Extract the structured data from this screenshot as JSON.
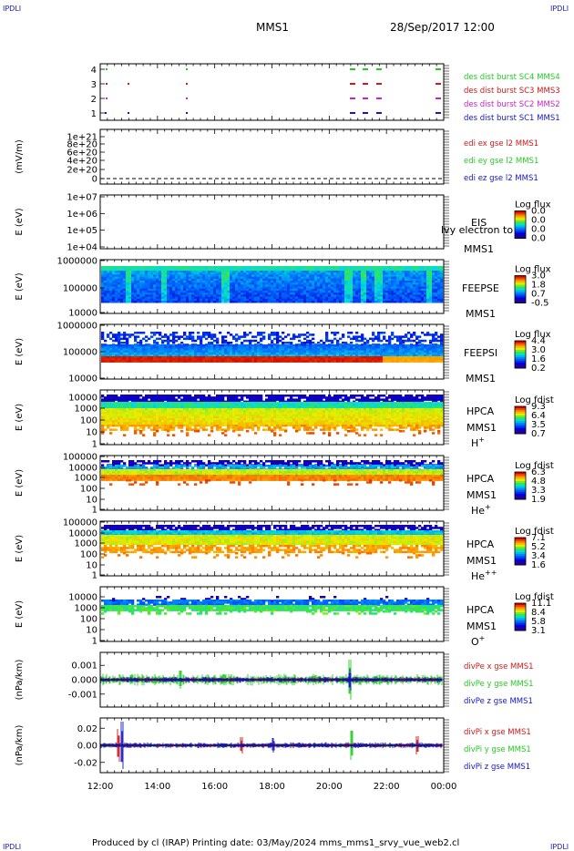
{
  "header": {
    "corner_logo": "IPDLI",
    "spacecraft": "MMS1",
    "datetime": "28/Sep/2017 12:00"
  },
  "footer": {
    "text": "Produced by cl (IRAP)   Printing date: 03/May/2024   mms_mms1_srvy_vue_web2.cl"
  },
  "colors": {
    "red": "#d01818",
    "green": "#22cc22",
    "blue": "#1515c8",
    "magenta": "#cc22cc"
  },
  "chart_data": [
    {
      "type": "scatter",
      "panel": "burst",
      "ylim": [
        0.5,
        4.5
      ],
      "yticks": [
        "1",
        "2",
        "3",
        "4"
      ],
      "series": [
        {
          "name": "des dist burst SC1 MMS1",
          "color": "#1515c8"
        },
        {
          "name": "des dist burst SC2 MMS2",
          "color": "#cc22cc"
        },
        {
          "name": "des dist burst SC3 MMS3",
          "color": "#d01818"
        },
        {
          "name": "des dist burst SC4 MMS4",
          "color": "#22cc22"
        }
      ]
    },
    {
      "type": "line",
      "panel": "edi",
      "ylabel": "(mV/m)",
      "yticks": [
        "1e+21",
        "8e+20",
        "6e+20",
        "4e+20",
        "2e+20",
        "0"
      ],
      "series": [
        {
          "name": "edi ex gse l2 MMS1",
          "color": "#d01818"
        },
        {
          "name": "edi ey gse l2 MMS1",
          "color": "#22cc22"
        },
        {
          "name": "edi ez gse l2 MMS1",
          "color": "#1515c8"
        }
      ]
    },
    {
      "type": "heatmap",
      "panel": "eis",
      "ylabel": "E (eV)",
      "yticks": [
        "1e+07",
        "1e+06",
        "1e+05",
        "1e+04"
      ],
      "labels": [
        "EIS",
        "MMS1"
      ],
      "overlap_text": "lvy electron to",
      "colorbar_title": "Log flux",
      "colorbar_ticks": [
        "0.0",
        "0.0",
        "0.0",
        "0.0"
      ]
    },
    {
      "type": "heatmap",
      "panel": "feeps_e",
      "ylabel": "E (eV)",
      "yticks": [
        "1000000",
        "100000",
        "10000"
      ],
      "labels": [
        "FEEPSE",
        "MMS1"
      ],
      "colorbar_title": "Log flux",
      "colorbar_ticks": [
        "3.0",
        "1.8",
        "0.7",
        "-0.5"
      ]
    },
    {
      "type": "heatmap",
      "panel": "feeps_i",
      "ylabel": "E (eV)",
      "yticks": [
        "1000000",
        "100000",
        "10000"
      ],
      "labels": [
        "FEEPSI",
        "MMS1"
      ],
      "colorbar_title": "Log flux",
      "colorbar_ticks": [
        "4.4",
        "3.0",
        "1.6",
        "0.2"
      ]
    },
    {
      "type": "heatmap",
      "panel": "hpca_h",
      "ylabel": "E (eV)",
      "yticks": [
        "10000",
        "1000",
        "100",
        "10",
        "1"
      ],
      "labels": [
        "HPCA",
        "MMS1"
      ],
      "species": "H",
      "species_sup": "+",
      "colorbar_title": "Log fdist",
      "colorbar_ticks": [
        "9.3",
        "6.4",
        "3.5",
        "0.7"
      ]
    },
    {
      "type": "heatmap",
      "panel": "hpca_he",
      "ylabel": "E (eV)",
      "yticks": [
        "100000",
        "10000",
        "1000",
        "100",
        "10",
        "1"
      ],
      "labels": [
        "HPCA",
        "MMS1"
      ],
      "species": "He",
      "species_sup": "+",
      "colorbar_title": "Log fdist",
      "colorbar_ticks": [
        "6.3",
        "4.8",
        "3.3",
        "1.9"
      ]
    },
    {
      "type": "heatmap",
      "panel": "hpca_hepp",
      "ylabel": "E (eV)",
      "yticks": [
        "100000",
        "10000",
        "1000",
        "100",
        "10",
        "1"
      ],
      "labels": [
        "HPCA",
        "MMS1"
      ],
      "species": "He",
      "species_sup": "++",
      "colorbar_title": "Log fdist",
      "colorbar_ticks": [
        "7.1",
        "5.2",
        "3.4",
        "1.6"
      ]
    },
    {
      "type": "heatmap",
      "panel": "hpca_o",
      "ylabel": "E (eV)",
      "yticks": [
        "10000",
        "1000",
        "100",
        "10",
        "1"
      ],
      "labels": [
        "HPCA",
        "MMS1"
      ],
      "species": "O",
      "species_sup": "+",
      "colorbar_title": "Log fdist",
      "colorbar_ticks": [
        "11.1",
        "8.4",
        "5.8",
        "3.1"
      ]
    },
    {
      "type": "line",
      "panel": "divpe",
      "ylabel": "(nPa/km)",
      "yticks": [
        "0.001",
        "0.000",
        "-0.001"
      ],
      "ylim": [
        -0.0019,
        0.0019
      ],
      "series": [
        {
          "name": "divPe x gse MMS1",
          "color": "#d01818"
        },
        {
          "name": "divPe y gse MMS1",
          "color": "#22cc22"
        },
        {
          "name": "divPe z gse MMS1",
          "color": "#1515c8"
        }
      ]
    },
    {
      "type": "line",
      "panel": "divpi",
      "ylabel": "(nPa/km)",
      "yticks": [
        "0.02",
        "0.00",
        "-0.02"
      ],
      "ylim": [
        -0.032,
        0.032
      ],
      "series": [
        {
          "name": "divPi x gse MMS1",
          "color": "#d01818"
        },
        {
          "name": "divPi y gse MMS1",
          "color": "#22cc22"
        },
        {
          "name": "divPi z gse MMS1",
          "color": "#1515c8"
        }
      ]
    }
  ],
  "xaxis": {
    "ticks": [
      "12:00",
      "14:00",
      "16:00",
      "18:00",
      "20:00",
      "22:00",
      "00:00"
    ]
  }
}
